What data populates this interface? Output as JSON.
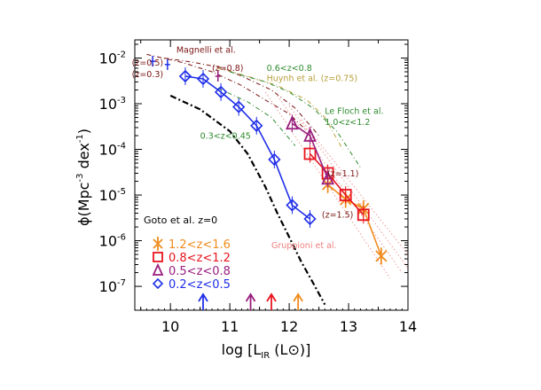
{
  "chart_data": {
    "type": "scatter",
    "xlabel": "log [L",
    "xlabel_sub": "IR",
    "xlabel_tail": " (L",
    "xlabel_sun": "⊙",
    "xlabel_end": ")]",
    "ylabel": "ϕ(Mpc",
    "ylabel_exp1": "-3",
    "ylabel_mid": " dex",
    "ylabel_exp2": "-1",
    "ylabel_end": ")",
    "x_scale": "linear",
    "y_scale": "log",
    "xlim": [
      9.4,
      14.0
    ],
    "ylim": [
      3e-08,
      0.025
    ],
    "x_ticks": [
      10,
      11,
      12,
      13,
      14
    ],
    "x_tick_labels": [
      "10",
      "11",
      "12",
      "13",
      "14"
    ],
    "y_ticks": [
      1e-07,
      1e-06,
      1e-05,
      0.0001,
      0.001,
      0.01
    ],
    "y_tick_labels": [
      {
        "base": "10",
        "exp": "-7"
      },
      {
        "base": "10",
        "exp": "-6"
      },
      {
        "base": "10",
        "exp": "-5"
      },
      {
        "base": "10",
        "exp": "-4"
      },
      {
        "base": "10",
        "exp": "-3"
      },
      {
        "base": "10",
        "exp": "-2"
      }
    ],
    "legend_placement": "lower-left",
    "series": [
      {
        "name": "1.2<z<1.6",
        "color": "#f08c1e",
        "marker": "x",
        "x": [
          12.65,
          12.95,
          13.25,
          13.55
        ],
        "y": [
          1.7e-05,
          8e-06,
          5e-06,
          4.6e-07
        ]
      },
      {
        "name": "0.8<z<1.2",
        "color": "#e8141e",
        "marker": "square",
        "x": [
          12.35,
          12.65,
          12.95,
          13.25
        ],
        "y": [
          8e-05,
          3e-05,
          1e-05,
          3.7e-06
        ]
      },
      {
        "name": "0.5<z<0.8",
        "color": "#991f7e",
        "marker": "triangle",
        "x": [
          12.05,
          12.35,
          12.65
        ],
        "y": [
          0.00037,
          0.0002,
          2.3e-05
        ]
      },
      {
        "name": "0.2<z<0.5",
        "color": "#1f2ee8",
        "marker": "diamond",
        "x": [
          10.25,
          10.55,
          10.85,
          11.15,
          11.45,
          11.75,
          12.05,
          12.35
        ],
        "y": [
          0.004,
          0.0035,
          0.0018,
          0.00085,
          0.00033,
          6e-05,
          6e-06,
          3e-06
        ]
      }
    ],
    "goto_curve": {
      "label": "Goto et al. z=0",
      "x": [
        10.0,
        10.5,
        11.0,
        11.3,
        11.6,
        11.8,
        12.0,
        12.2,
        12.4,
        12.6
      ],
      "y": [
        0.0015,
        0.00075,
        0.00025,
        8e-05,
        1.5e-05,
        4e-06,
        1.2e-06,
        3.5e-07,
        1.2e-07,
        4e-08
      ]
    },
    "gruppioni_lines": [
      {
        "x": [
          11.8,
          13.9
        ],
        "y": [
          0.0015,
          2e-07
        ]
      },
      {
        "x": [
          12.0,
          14.0
        ],
        "y": [
          0.0009,
          2.5e-07
        ]
      },
      {
        "x": [
          12.2,
          14.0
        ],
        "y": [
          0.00045,
          5e-07
        ]
      },
      {
        "x": [
          11.6,
          13.7
        ],
        "y": [
          0.0018,
          1.5e-07
        ]
      }
    ],
    "literature_curves": [
      {
        "color": "#7a1414",
        "x": [
          9.6,
          10.2,
          10.7,
          11.2,
          11.6,
          12.0,
          12.3
        ],
        "y": [
          0.012,
          0.008,
          0.005,
          0.0025,
          0.0012,
          0.0006,
          0.00025
        ]
      },
      {
        "color": "#7a1414",
        "x": [
          9.9,
          10.4,
          10.9,
          11.3,
          11.7,
          12.1,
          12.5
        ],
        "y": [
          0.01,
          0.008,
          0.006,
          0.0035,
          0.002,
          0.0008,
          0.0002
        ]
      },
      {
        "color": "#b9a03c",
        "x": [
          10.8,
          11.3,
          11.8,
          12.3,
          12.6,
          12.9
        ],
        "y": [
          0.006,
          0.004,
          0.0025,
          0.0012,
          0.0005,
          0.0001
        ]
      },
      {
        "color": "#2e8b2e",
        "x": [
          11.0,
          11.6,
          12.0,
          12.4,
          12.8,
          13.2
        ],
        "y": [
          0.005,
          0.003,
          0.0018,
          0.0008,
          0.00025,
          4e-05
        ]
      },
      {
        "color": "#2e8b2e",
        "x": [
          10.8,
          11.3,
          11.7,
          12.1
        ],
        "y": [
          0.0022,
          0.0011,
          0.0005,
          0.00012
        ]
      }
    ],
    "magnelli_points": [
      {
        "x": 9.7,
        "y": 0.0085,
        "color": "#1f2ee8"
      },
      {
        "x": 9.95,
        "y": 0.0072,
        "color": "#1f2ee8"
      },
      {
        "x": 10.8,
        "y": 0.004,
        "color": "#991f7e"
      }
    ],
    "arrows": [
      {
        "x": 10.55,
        "color": "#1f2ee8"
      },
      {
        "x": 11.35,
        "color": "#991f7e"
      },
      {
        "x": 11.7,
        "color": "#e8141e"
      },
      {
        "x": 12.15,
        "color": "#f08c1e"
      }
    ],
    "annotations": [
      {
        "text": "Magnelli et al.",
        "color": "#7a1414",
        "x": 10.1,
        "y": 0.013
      },
      {
        "text": "(z=0.5)",
        "color": "#7a1414",
        "x": 9.35,
        "y": 0.0068
      },
      {
        "text": "(z=0.3)",
        "color": "#7a1414",
        "x": 9.35,
        "y": 0.0038
      },
      {
        "text": "(z=0.8)",
        "color": "#7a1414",
        "x": 10.7,
        "y": 0.0052
      },
      {
        "text": "0.6<z<0.8",
        "color": "#2e8b2e",
        "x": 11.62,
        "y": 0.0052
      },
      {
        "text": "Huynh et al. (z=0.75)",
        "color": "#b9a03c",
        "x": 11.62,
        "y": 0.0031
      },
      {
        "text": "Le Floch et al.",
        "color": "#2e8b2e",
        "x": 12.6,
        "y": 0.0006
      },
      {
        "text": "1.0<z<1.2",
        "color": "#2e8b2e",
        "x": 12.6,
        "y": 0.00034
      },
      {
        "text": "0.3<z<0.45",
        "color": "#2e8b2e",
        "x": 10.5,
        "y": 0.00017
      },
      {
        "text": "(z=1.1)",
        "color": "#7a1414",
        "x": 12.64,
        "y": 2.55e-05
      },
      {
        "text": "(z=1.5)",
        "color": "#7a1414",
        "x": 12.55,
        "y": 3.2e-06
      },
      {
        "text": "Gruppioni et al.",
        "color": "#f08080",
        "x": 11.7,
        "y": 6.8e-07
      }
    ]
  }
}
